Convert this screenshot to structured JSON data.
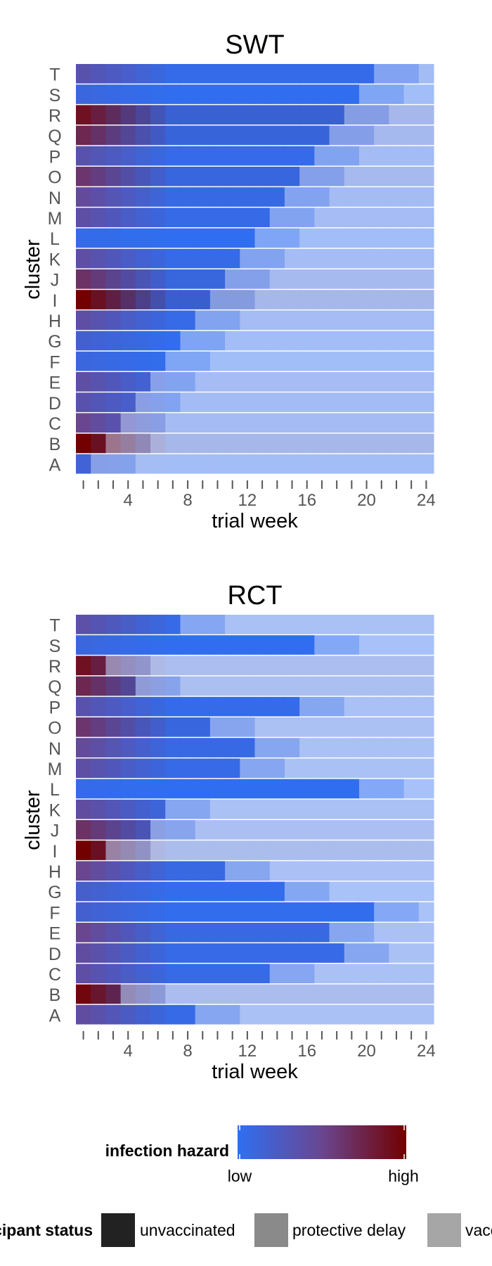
{
  "chart_data": [
    {
      "type": "heatmap",
      "title": "SWT",
      "xlabel": "trial week",
      "ylabel": "cluster",
      "x_ticks": [
        4,
        8,
        12,
        16,
        20,
        24
      ],
      "xlim": [
        1,
        24
      ],
      "clusters": [
        "A",
        "B",
        "C",
        "D",
        "E",
        "F",
        "G",
        "H",
        "I",
        "J",
        "K",
        "L",
        "M",
        "N",
        "O",
        "P",
        "Q",
        "R",
        "S",
        "T"
      ],
      "hazard": [
        0.15,
        1.0,
        0.5,
        0.35,
        0.4,
        0.1,
        0.18,
        0.4,
        1.0,
        0.65,
        0.4,
        0.05,
        0.4,
        0.45,
        0.62,
        0.35,
        0.72,
        0.88,
        0.1,
        0.35
      ],
      "vaccination_week": [
        1,
        2,
        3,
        4,
        5,
        6,
        7,
        8,
        9,
        10,
        11,
        12,
        13,
        14,
        15,
        16,
        17,
        18,
        19,
        20
      ]
    },
    {
      "type": "heatmap",
      "title": "RCT",
      "xlabel": "trial week",
      "ylabel": "cluster",
      "x_ticks": [
        4,
        8,
        12,
        16,
        20,
        24
      ],
      "xlim": [
        1,
        24
      ],
      "clusters": [
        "A",
        "B",
        "C",
        "D",
        "E",
        "F",
        "G",
        "H",
        "I",
        "J",
        "K",
        "L",
        "M",
        "N",
        "O",
        "P",
        "Q",
        "R",
        "S",
        "T"
      ],
      "hazard": [
        0.42,
        0.95,
        0.4,
        0.42,
        0.5,
        0.18,
        0.2,
        0.5,
        1.0,
        0.65,
        0.42,
        0.05,
        0.4,
        0.45,
        0.62,
        0.35,
        0.72,
        0.88,
        0.1,
        0.38
      ],
      "vaccination_week": [
        8,
        3,
        13,
        18,
        17,
        20,
        14,
        10,
        2,
        5,
        6,
        19,
        11,
        12,
        9,
        15,
        4,
        2,
        16,
        7
      ]
    }
  ],
  "hazard_legend": {
    "title": "infection hazard",
    "low": "low",
    "high": "high",
    "low_color": "#2f6ff2",
    "mid_color": "#6a4690",
    "high_color": "#720000"
  },
  "status_legend": {
    "title": "participant status",
    "items": [
      {
        "label": "unvaccinated",
        "color": "#222222"
      },
      {
        "label": "protective delay",
        "color": "#8a8a8a"
      },
      {
        "label": "vaccinated",
        "color": "#a6a6a6"
      }
    ]
  }
}
